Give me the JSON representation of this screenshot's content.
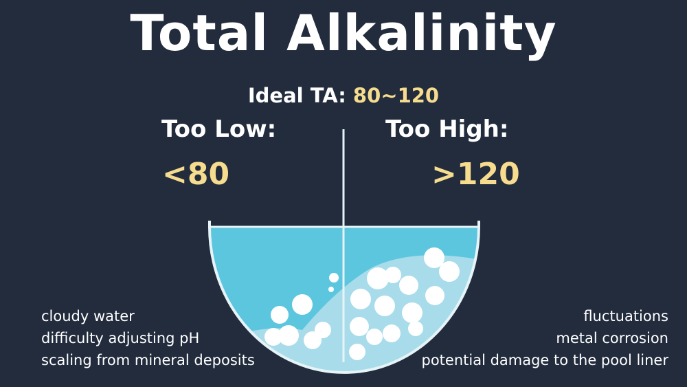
{
  "title": "Total Alkalinity",
  "ideal": {
    "label": "Ideal TA:",
    "value": "80~120"
  },
  "low": {
    "heading": "Too Low:",
    "threshold": "<80",
    "effects": [
      "cloudy water",
      "difficulty adjusting pH",
      "scaling from mineral deposits"
    ]
  },
  "high": {
    "heading": "Too High:",
    "threshold": ">120",
    "effects": [
      "fluctuations",
      "metal corrosion",
      "potential damage to the pool liner"
    ]
  },
  "colors": {
    "background": "#222c3d",
    "accent": "#f6dc8e",
    "water": "#5cc6df",
    "water_light": "#a8dcea"
  }
}
